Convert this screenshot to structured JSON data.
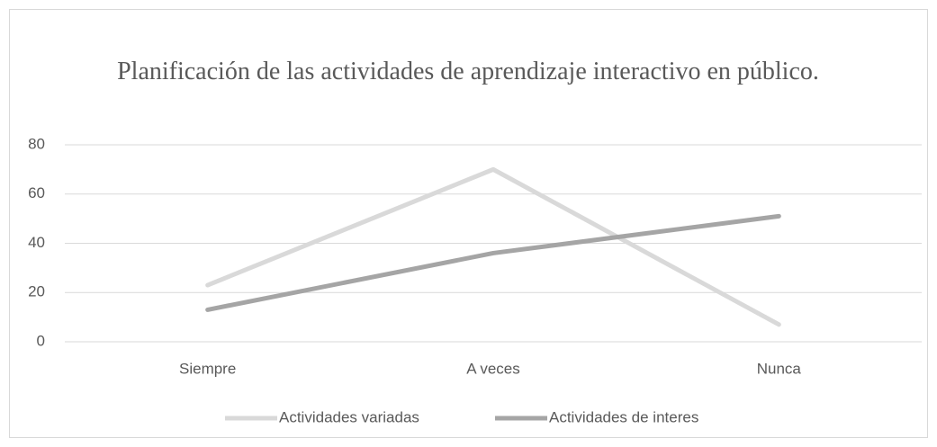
{
  "chart_data": {
    "type": "line",
    "title": "Planificación de las actividades de aprendizaje interactivo en público.",
    "categories": [
      "Siempre",
      "A veces",
      "Nunca"
    ],
    "series": [
      {
        "name": "Actividades variadas",
        "color": "#d9d9d9",
        "values": [
          23,
          70,
          7
        ]
      },
      {
        "name": "Actividades de interes",
        "color": "#a5a5a5",
        "values": [
          13,
          36,
          51
        ]
      }
    ],
    "ylim": [
      0,
      80
    ],
    "yticks": [
      0,
      20,
      40,
      60,
      80
    ],
    "grid": true,
    "legend": "bottom"
  }
}
